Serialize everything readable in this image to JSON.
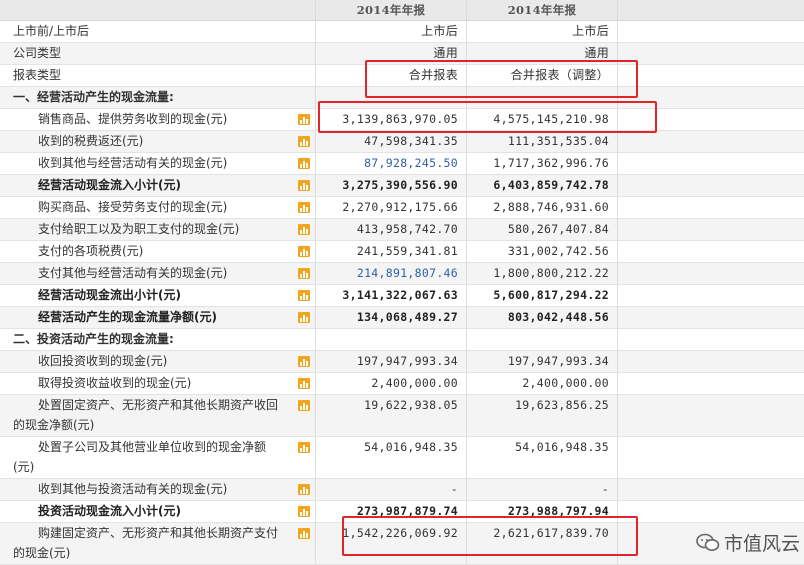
{
  "header": {
    "col1": "2014年年报",
    "col2": "2014年年报"
  },
  "rows": [
    {
      "label": "上市前/上市后",
      "v1": "上市后",
      "v2": "上市后"
    },
    {
      "label": "公司类型",
      "v1": "通用",
      "v2": "通用"
    },
    {
      "label": "报表类型",
      "v1": "合并报表",
      "v2": "合并报表（调整）"
    },
    {
      "label": "一、经营活动产生的现金流量:"
    },
    {
      "label": "销售商品、提供劳务收到的现金(元)",
      "v1": "3,139,863,970.05",
      "v2": "4,575,145,210.98"
    },
    {
      "label": "收到的税费返还(元)",
      "v1": "47,598,341.35",
      "v2": "111,351,535.04"
    },
    {
      "label": "收到其他与经营活动有关的现金(元)",
      "v1": "87,928,245.50",
      "v2": "1,717,362,996.76"
    },
    {
      "label": "经营活动现金流入小计(元)",
      "v1": "3,275,390,556.90",
      "v2": "6,403,859,742.78"
    },
    {
      "label": "购买商品、接受劳务支付的现金(元)",
      "v1": "2,270,912,175.66",
      "v2": "2,888,746,931.60"
    },
    {
      "label": "支付给职工以及为职工支付的现金(元)",
      "v1": "413,958,742.70",
      "v2": "580,267,407.84"
    },
    {
      "label": "支付的各项税费(元)",
      "v1": "241,559,341.81",
      "v2": "331,002,742.56"
    },
    {
      "label": "支付其他与经营活动有关的现金(元)",
      "v1": "214,891,807.46",
      "v2": "1,800,800,212.22"
    },
    {
      "label": "经营活动现金流出小计(元)",
      "v1": "3,141,322,067.63",
      "v2": "5,600,817,294.22"
    },
    {
      "label": "经营活动产生的现金流量净额(元)",
      "v1": "134,068,489.27",
      "v2": "803,042,448.56"
    },
    {
      "label": "二、投资活动产生的现金流量:"
    },
    {
      "label": "收回投资收到的现金(元)",
      "v1": "197,947,993.34",
      "v2": "197,947,993.34"
    },
    {
      "label": "取得投资收益收到的现金(元)",
      "v1": "2,400,000.00",
      "v2": "2,400,000.00"
    },
    {
      "label_a": "处置固定资产、无形资产和其他长期资产收回",
      "label_b": "的现金净额(元)",
      "v1": "19,622,938.05",
      "v2": "19,623,856.25"
    },
    {
      "label_a": "处置子公司及其他营业单位收到的现金净额",
      "label_b": "(元)",
      "v1": "54,016,948.35",
      "v2": "54,016,948.35"
    },
    {
      "label": "收到其他与投资活动有关的现金(元)",
      "v1": "-",
      "v2": "-"
    },
    {
      "label": "投资活动现金流入小计(元)",
      "v1": "273,987,879.74",
      "v2": "273,988,797.94"
    },
    {
      "label_a": "购建固定资产、无形资产和其他长期资产支付",
      "label_b": "的现金(元)",
      "v1": "1,542,226,069.92",
      "v2": "2,621,617,839.70"
    }
  ],
  "watermark": {
    "text": "市值风云"
  },
  "colors": {
    "highlight": "#e0262a",
    "icon": "#f3a51b",
    "link_value": "#2f5fa8"
  }
}
